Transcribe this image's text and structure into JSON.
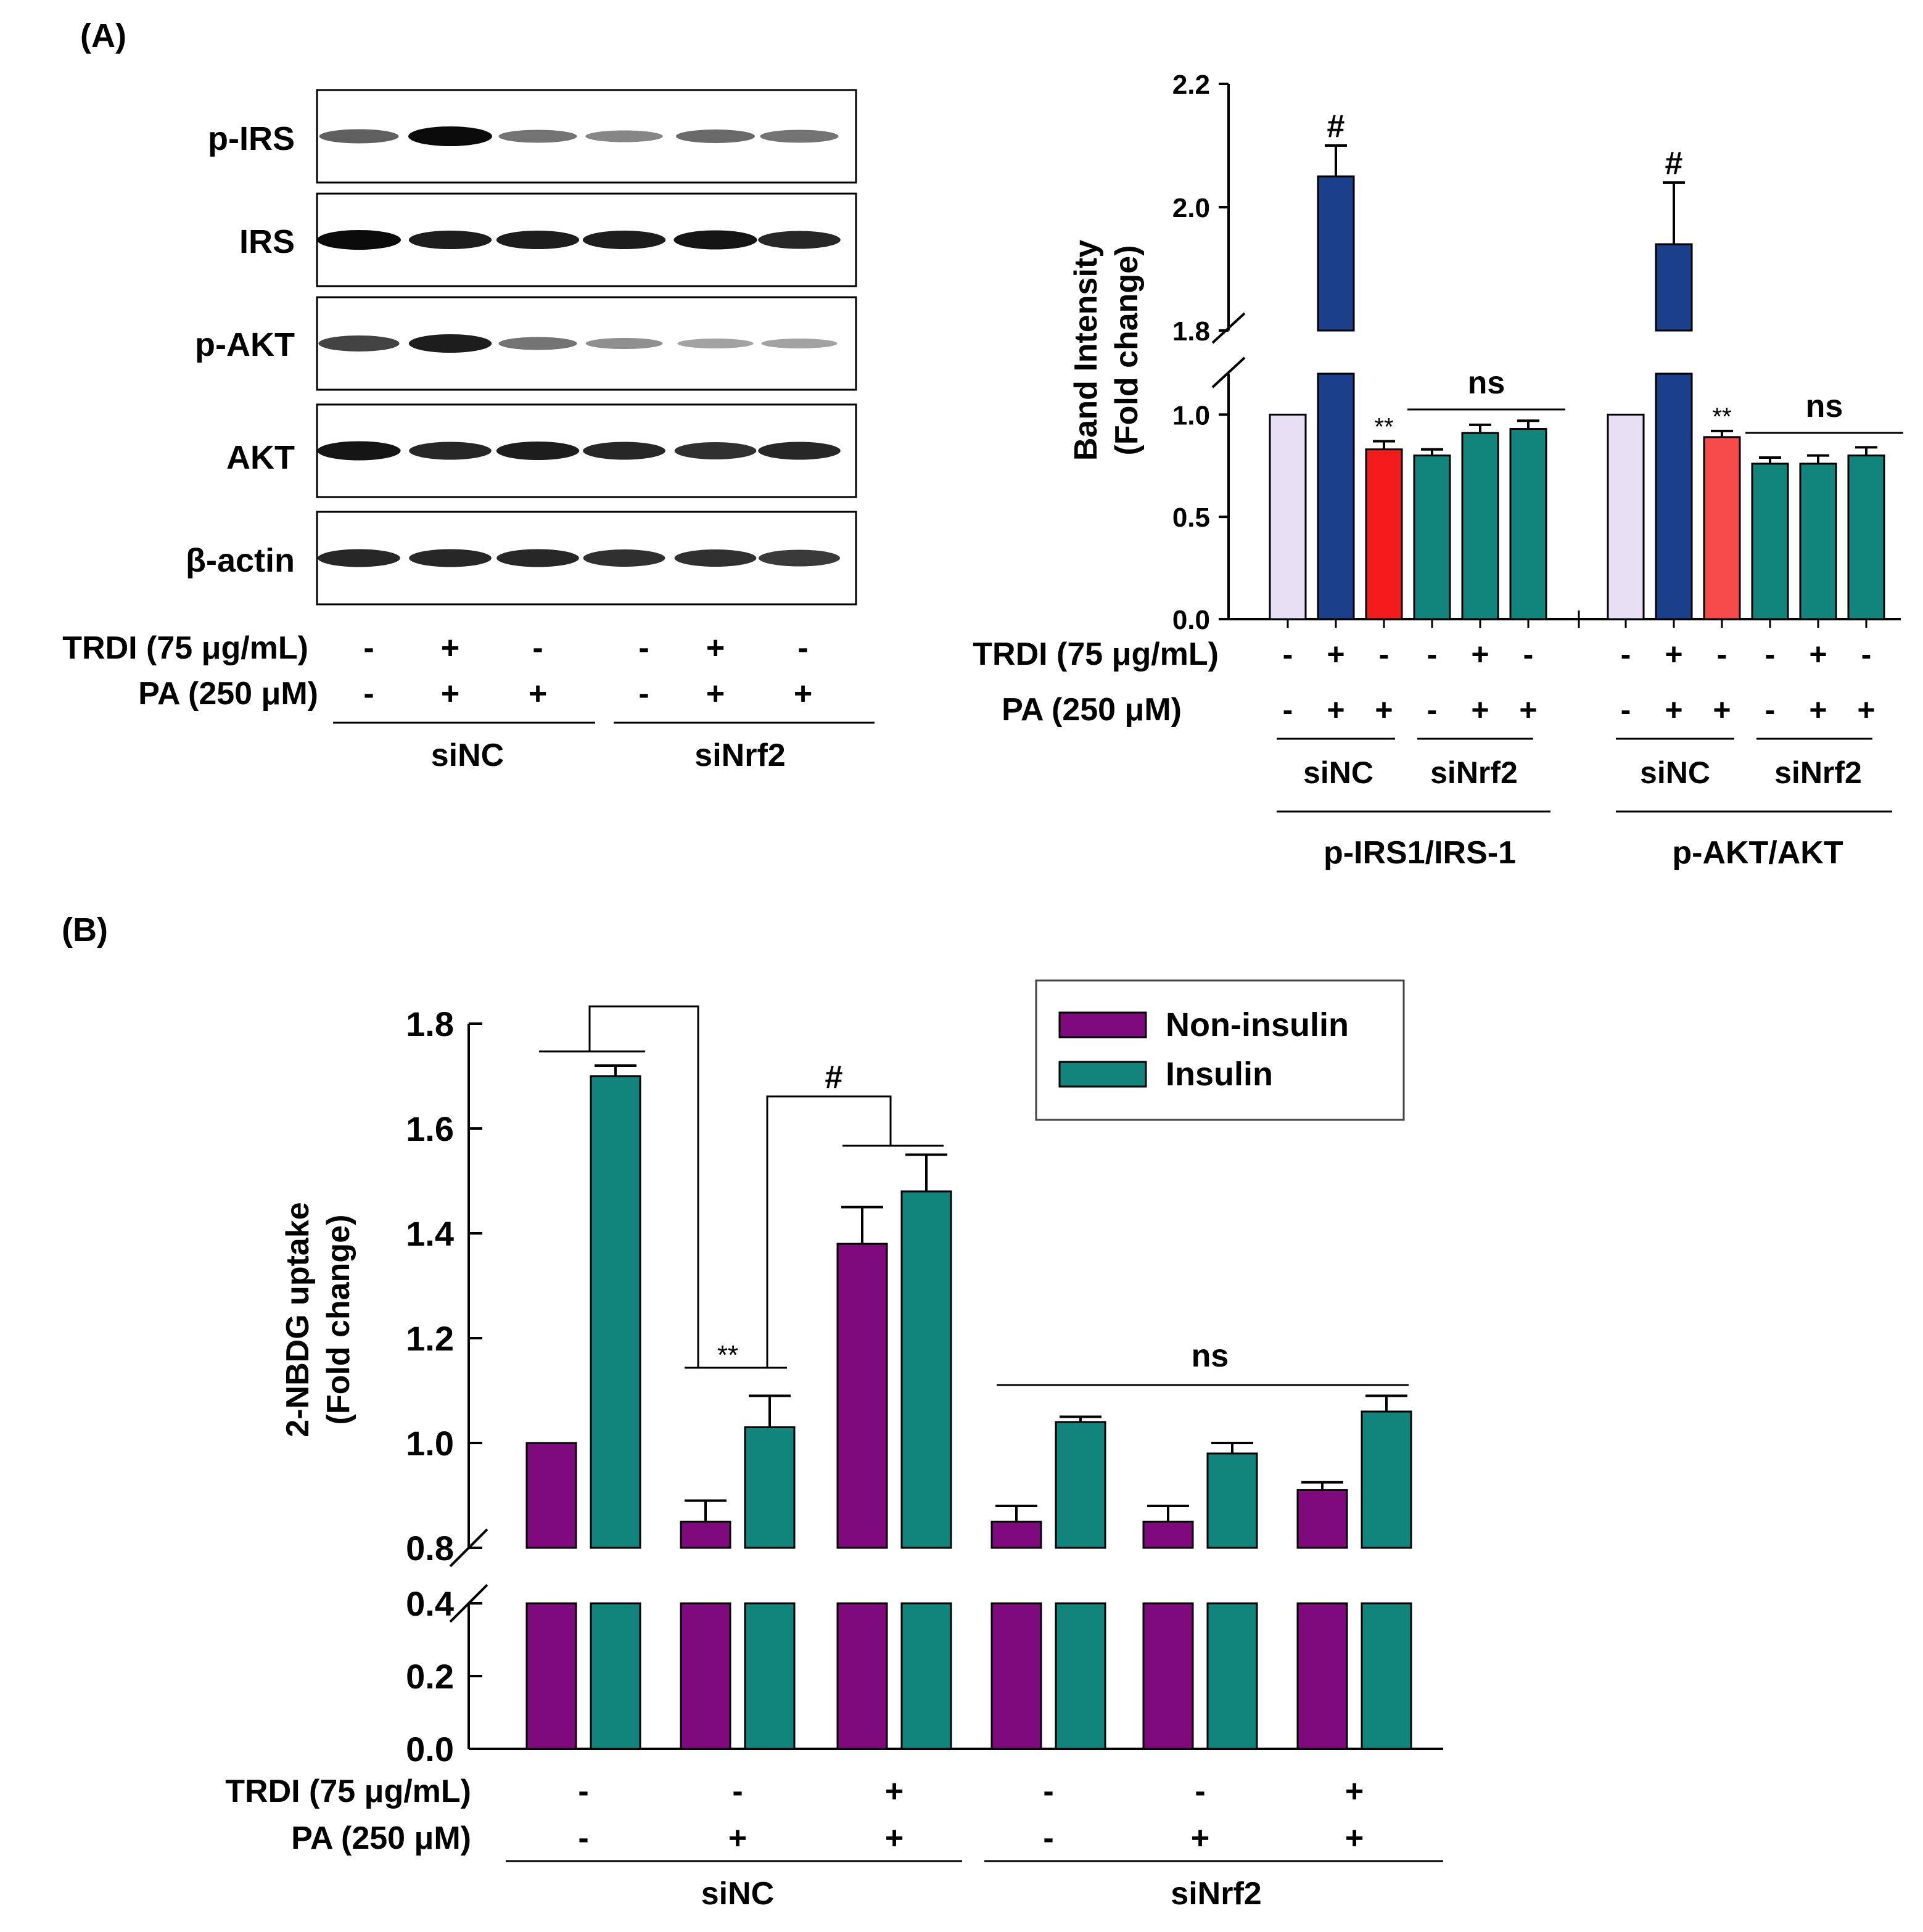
{
  "colors": {
    "ctrl": "#e9dff5",
    "trdi": "#1b3f8b",
    "pa": "#f21c1c",
    "pa2": "#f64a4a",
    "sinrf2": "#11847c",
    "noninsulin": "#7e0a7e",
    "insulin": "#11847c",
    "blot_bg": "#ffffff"
  },
  "panelA": {
    "label": "(A)",
    "blot": {
      "rows": [
        "p-IRS",
        "IRS",
        "p-AKT",
        "AKT",
        "β-actin"
      ],
      "trdi_label": "TRDI (75 μg/mL)",
      "pa_label": "PA (250 μM)",
      "trdi_signs": [
        "-",
        "+",
        "-",
        "-",
        "+",
        "-"
      ],
      "pa_signs": [
        "-",
        "+",
        "+",
        "-",
        "+",
        "+"
      ],
      "groups": [
        "siNC",
        "siNrf2"
      ],
      "band_intensity": [
        [
          0.55,
          1.0,
          0.45,
          0.35,
          0.5,
          0.45
        ],
        [
          1.0,
          0.9,
          0.9,
          0.9,
          0.95,
          0.85
        ],
        [
          0.7,
          0.9,
          0.45,
          0.3,
          0.2,
          0.2
        ],
        [
          0.95,
          0.85,
          0.9,
          0.85,
          0.8,
          0.85
        ],
        [
          0.85,
          0.85,
          0.85,
          0.8,
          0.8,
          0.75
        ]
      ]
    }
  },
  "chart_data": [
    {
      "type": "bar",
      "title": "",
      "ylabel": "Band Intensity\n(Fold change)",
      "ylabel_line1": "Band Intensity",
      "ylabel_line2": "(Fold change)",
      "y_lower_range": [
        0,
        1.2
      ],
      "y_upper_range": [
        1.8,
        2.2
      ],
      "y_ticks": [
        "0.0",
        "0.5",
        "1.0",
        "1.8",
        "2.0",
        "2.2"
      ],
      "trdi_label": "TRDI (75 μg/mL)",
      "pa_label": "PA (250 μM)",
      "groups": [
        {
          "name": "p-IRS1/IRS-1",
          "subgroups": [
            "siNC",
            "siNrf2"
          ],
          "trdi": [
            "-",
            "+",
            "-",
            "-",
            "+",
            "-"
          ],
          "pa": [
            "-",
            "+",
            "+",
            "-",
            "+",
            "+"
          ],
          "values": [
            1.0,
            2.05,
            0.83,
            0.8,
            0.91,
            0.93
          ],
          "errors": [
            0,
            0.05,
            0.04,
            0.03,
            0.04,
            0.04
          ],
          "colors": [
            "ctrl",
            "trdi",
            "pa",
            "sinrf2",
            "sinrf2",
            "sinrf2"
          ],
          "annotations": {
            "hash": "#",
            "stars": "**",
            "ns": "ns"
          }
        },
        {
          "name": "p-AKT/AKT",
          "subgroups": [
            "siNC",
            "siNrf2"
          ],
          "trdi": [
            "-",
            "+",
            "-",
            "-",
            "+",
            "-"
          ],
          "pa": [
            "-",
            "+",
            "+",
            "-",
            "+",
            "+"
          ],
          "values": [
            1.0,
            1.94,
            0.89,
            0.76,
            0.76,
            0.8
          ],
          "errors": [
            0,
            0.1,
            0.03,
            0.03,
            0.04,
            0.04
          ],
          "colors": [
            "ctrl",
            "trdi",
            "pa2",
            "sinrf2",
            "sinrf2",
            "sinrf2"
          ],
          "annotations": {
            "hash": "#",
            "stars": "**",
            "ns": "ns"
          }
        }
      ]
    },
    {
      "type": "bar",
      "title": "",
      "panel_label": "(B)",
      "ylabel_line1": "2-NBDG uptake",
      "ylabel_line2": "(Fold change)",
      "y_lower_range": [
        0,
        0.4
      ],
      "y_upper_range": [
        0.8,
        1.8
      ],
      "y_ticks": [
        "0.0",
        "0.2",
        "0.4",
        "0.8",
        "1.0",
        "1.2",
        "1.4",
        "1.6",
        "1.8"
      ],
      "legend": [
        "Non-insulin",
        "Insulin"
      ],
      "legend_position": "top-right",
      "trdi_label": "TRDI (75 μg/mL)",
      "pa_label": "PA (250 μM)",
      "trdi": [
        "-",
        "-",
        "+",
        "-",
        "-",
        "+"
      ],
      "pa": [
        "-",
        "+",
        "+",
        "-",
        "+",
        "+"
      ],
      "groups": [
        "siNC",
        "siNrf2"
      ],
      "series": [
        {
          "name": "Non-insulin",
          "values": [
            1.0,
            0.85,
            1.38,
            0.85,
            0.85,
            0.91
          ],
          "errors": [
            0,
            0.04,
            0.07,
            0.03,
            0.03,
            0.015
          ]
        },
        {
          "name": "Insulin",
          "values": [
            1.7,
            1.03,
            1.48,
            1.04,
            0.98,
            1.06
          ],
          "errors": [
            0.02,
            0.06,
            0.07,
            0.01,
            0.02,
            0.03
          ]
        }
      ],
      "annotations": {
        "stars": "**",
        "hash": "#",
        "ns": "ns"
      }
    }
  ]
}
